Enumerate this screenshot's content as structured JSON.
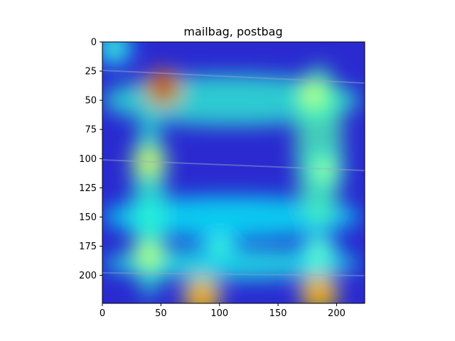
{
  "chart_data": {
    "type": "heatmap",
    "title": "mailbag, postbag",
    "xlabel": "",
    "ylabel": "",
    "xlim": [
      0,
      224
    ],
    "ylim": [
      224,
      0
    ],
    "x_ticks": [
      0,
      50,
      100,
      150,
      200
    ],
    "y_ticks": [
      0,
      25,
      50,
      75,
      100,
      125,
      150,
      175,
      200
    ],
    "colormap": "jet",
    "overlay": "attention heatmap over photo of a canvas mail bag",
    "hotspots": [
      {
        "x": 52,
        "y": 40,
        "level": 1.0
      },
      {
        "x": 40,
        "y": 103,
        "level": 0.65
      },
      {
        "x": 40,
        "y": 183,
        "level": 0.6
      },
      {
        "x": 85,
        "y": 218,
        "level": 0.85
      },
      {
        "x": 185,
        "y": 215,
        "level": 0.85
      },
      {
        "x": 180,
        "y": 45,
        "level": 0.6
      },
      {
        "x": 190,
        "y": 110,
        "level": 0.55
      },
      {
        "x": 185,
        "y": 180,
        "level": 0.5
      },
      {
        "x": 100,
        "y": 175,
        "level": 0.45
      },
      {
        "x": 10,
        "y": 5,
        "level": 0.45
      }
    ],
    "grid": false,
    "legend": "none"
  }
}
